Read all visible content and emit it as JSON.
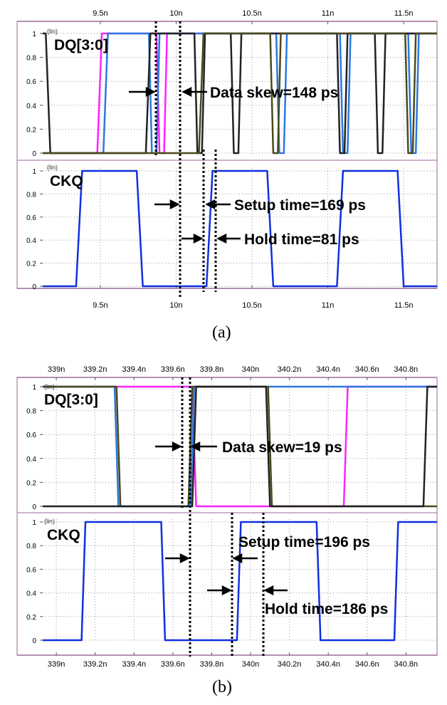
{
  "chart_data": [
    {
      "type": "line",
      "panel_label": "(a)",
      "x_ticks": [
        "9.5n",
        "10n",
        "10.5n",
        "11n",
        "11.5n"
      ],
      "x_tick_values": [
        9.5,
        10,
        10.5,
        11,
        11.5
      ],
      "xlim": [
        9.12,
        11.72
      ],
      "y_ticks": [
        "0",
        "0.2",
        "0.4",
        "0.6",
        "0.8",
        "1"
      ],
      "y_unit": "(lin)",
      "colors": {
        "magenta": "#ff22ff",
        "blue": "#2a78e0",
        "black": "#222222",
        "olive": "#4a4a1a",
        "clk": "#1030e0"
      },
      "subplots": [
        {
          "title": "DQ[3:0]",
          "ylim": [
            0,
            1
          ],
          "series": [
            {
              "color": "magenta",
              "x": [
                9.12,
                9.47,
                9.48,
                9.51,
                9.53,
                9.87,
                9.89,
                9.92,
                9.94,
                11.72
              ],
              "y": [
                0,
                0,
                0,
                1,
                1,
                1,
                0,
                0,
                1,
                1
              ]
            },
            {
              "color": "blue",
              "x": [
                9.12,
                9.5,
                9.52,
                9.55,
                9.57,
                9.82,
                9.84,
                9.87,
                9.89,
                10.66,
                10.68,
                10.71,
                10.73,
                11.08,
                11.1,
                11.13,
                11.15,
                11.53,
                11.55,
                11.58,
                11.6,
                11.72
              ],
              "y": [
                0,
                0,
                0,
                1,
                1,
                1,
                0,
                0,
                1,
                1,
                0,
                0,
                1,
                1,
                0,
                0,
                1,
                1,
                0,
                0,
                1,
                1
              ]
            },
            {
              "color": "black",
              "x": [
                9.12,
                9.14,
                9.17,
                9.19,
                9.78,
                9.8,
                9.83,
                9.85,
                10.12,
                10.14,
                10.17,
                10.19,
                10.36,
                10.38,
                10.41,
                10.43,
                11.06,
                11.08,
                11.11,
                11.13,
                11.31,
                11.33,
                11.36,
                11.38,
                11.72
              ],
              "y": [
                1,
                1,
                0,
                0,
                0,
                0,
                1,
                1,
                1,
                0,
                0,
                1,
                1,
                0,
                0,
                1,
                1,
                0,
                0,
                1,
                1,
                0,
                0,
                1,
                1
              ]
            },
            {
              "color": "olive",
              "x": [
                9.12,
                10.13,
                10.15,
                10.18,
                10.2,
                10.62,
                10.64,
                10.67,
                10.69,
                11.51,
                11.53,
                11.56,
                11.58,
                11.72
              ],
              "y": [
                0,
                0,
                0,
                1,
                1,
                1,
                0,
                0,
                1,
                1,
                0,
                0,
                1,
                1
              ]
            }
          ],
          "annotations": [
            {
              "text": "Data skew=148 ps"
            }
          ]
        },
        {
          "title": "CKQ",
          "ylim": [
            0,
            1
          ],
          "series": [
            {
              "color": "clk",
              "x": [
                9.12,
                9.33,
                9.34,
                9.38,
                9.4,
                9.72,
                9.74,
                9.78,
                9.8,
                10.18,
                10.2,
                10.24,
                10.26,
                10.58,
                10.6,
                10.64,
                10.66,
                11.04,
                11.06,
                11.1,
                11.12,
                11.44,
                11.46,
                11.5,
                11.52,
                11.72
              ],
              "y": [
                0,
                0,
                0,
                1,
                1,
                1,
                1,
                0,
                0,
                0,
                0,
                1,
                1,
                1,
                1,
                0,
                0,
                0,
                0,
                1,
                1,
                1,
                1,
                0,
                0,
                0
              ]
            }
          ],
          "annotations": [
            {
              "text": "Setup time=169 ps"
            },
            {
              "text": "Hold time=81 ps"
            }
          ]
        }
      ]
    },
    {
      "type": "line",
      "panel_label": "(b)",
      "x_ticks": [
        "339n",
        "339.2n",
        "339.4n",
        "339.6n",
        "339.8n",
        "340n",
        "340.2n",
        "340.4n",
        "340.6n",
        "340.8n"
      ],
      "x_tick_values": [
        339,
        339.2,
        339.4,
        339.6,
        339.8,
        340,
        340.2,
        340.4,
        340.6,
        340.8
      ],
      "xlim": [
        338.93,
        340.96
      ],
      "y_ticks": [
        "0",
        "0.2",
        "0.4",
        "0.6",
        "0.8",
        "1"
      ],
      "y_unit": "(lin)",
      "colors": {
        "magenta": "#ff22ff",
        "blue": "#2a78e0",
        "black": "#222222",
        "olive": "#4a4a1a",
        "clk": "#1030e0"
      },
      "subplots": [
        {
          "title": "DQ[3:0]",
          "ylim": [
            0,
            1
          ],
          "series": [
            {
              "color": "magenta",
              "x": [
                338.93,
                339.7,
                339.72,
                339.74,
                340.48,
                340.5,
                340.52,
                340.96
              ],
              "y": [
                1,
                1,
                0,
                0,
                0,
                1,
                1,
                1
              ]
            },
            {
              "color": "blue",
              "x": [
                338.93,
                339.3,
                339.32,
                339.34,
                339.69,
                339.71,
                339.73,
                340.96
              ],
              "y": [
                1,
                1,
                0,
                0,
                0,
                1,
                1,
                1
              ]
            },
            {
              "color": "olive",
              "x": [
                338.93,
                339.31,
                339.33,
                339.35,
                339.68,
                339.7,
                339.72,
                340.09,
                340.11,
                340.13,
                340.96
              ],
              "y": [
                1,
                1,
                0,
                0,
                0,
                1,
                1,
                1,
                0,
                0,
                0
              ]
            },
            {
              "color": "black",
              "x": [
                338.93,
                339.7,
                339.72,
                339.74,
                340.08,
                340.1,
                340.12,
                340.89,
                340.91,
                340.93,
                340.96
              ],
              "y": [
                0,
                0,
                1,
                1,
                1,
                0,
                0,
                0,
                1,
                1,
                1
              ]
            }
          ],
          "annotations": [
            {
              "text": "Data skew=19 ps"
            }
          ]
        },
        {
          "title": "CKQ",
          "ylim": [
            0,
            1
          ],
          "series": [
            {
              "color": "clk",
              "x": [
                338.93,
                339.13,
                339.15,
                339.17,
                339.54,
                339.56,
                339.58,
                339.93,
                339.95,
                339.97,
                340.34,
                340.36,
                340.38,
                340.74,
                340.76,
                340.78,
                340.96
              ],
              "y": [
                0,
                0,
                1,
                1,
                1,
                0,
                0,
                0,
                1,
                1,
                1,
                0,
                0,
                0,
                1,
                1,
                1
              ]
            }
          ],
          "annotations": [
            {
              "text": "Setup time=196 ps"
            },
            {
              "text": "Hold time=186 ps"
            }
          ]
        }
      ]
    }
  ]
}
